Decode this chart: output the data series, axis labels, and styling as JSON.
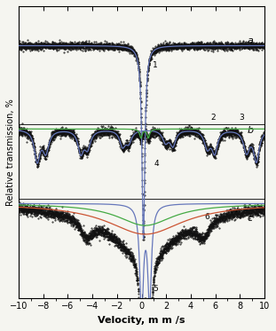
{
  "xlabel": "Velocity, m m /s",
  "ylabel": "Relative transmission, %",
  "xlim": [
    -10,
    10
  ],
  "x_ticks": [
    -10,
    -8,
    -6,
    -4,
    -2,
    0,
    2,
    4,
    6,
    8,
    10
  ],
  "bg_color": "#f5f5f0",
  "label_a": "a",
  "label_b": "b",
  "label_c": "c",
  "color_data": "#111111",
  "color_blue": "#6677bb",
  "color_green": "#44aa44",
  "color_red": "#cc5533",
  "va": 0.0,
  "vb": -0.38,
  "vc": -0.72,
  "noise_amp_a": 0.008,
  "noise_amp_b": 0.01,
  "noise_amp_c": 0.012,
  "marker_size": 0.9
}
